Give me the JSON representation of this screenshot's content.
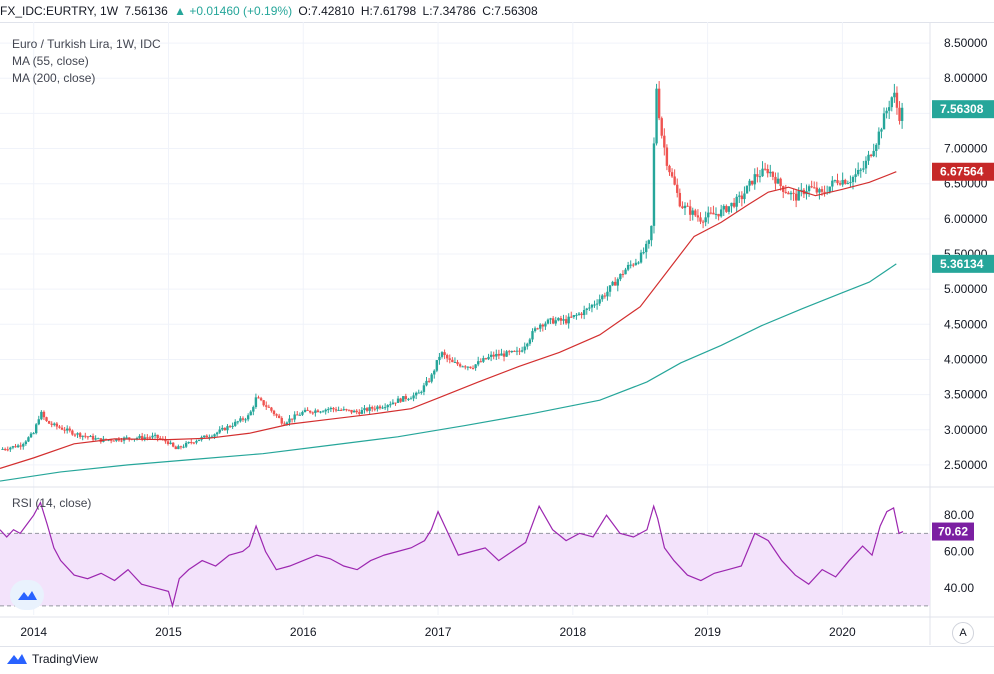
{
  "header": {
    "symbol": "FX_IDC:EURTRY, 1W",
    "last": "7.56136",
    "change": "▲ +0.01460 (+0.19%)",
    "open": "O:7.42810",
    "high": "H:7.61798",
    "low": "L:7.34786",
    "close": "C:7.56308"
  },
  "legend": {
    "title": "Euro / Turkish Lira, 1W, IDC",
    "ma55": "MA (55, close)",
    "ma200": "MA (200, close)",
    "rsi": "RSI (14, close)"
  },
  "footer": {
    "brand": "TradingView",
    "auto": "A"
  },
  "colors": {
    "up": "#26a69a",
    "down": "#ef5350",
    "ma55": "#d32f2f",
    "ma200": "#26a69a",
    "rsi": "#9c27b0",
    "rsi_band": "#f3e3fb",
    "price_badge": "#26a69a",
    "ma55_badge": "#c62828",
    "ma200_badge": "#26a69a",
    "rsi_badge": "#7b1fa2"
  },
  "chart_data": [
    {
      "type": "candlestick",
      "title": "Euro / Turkish Lira, 1W, IDC",
      "ylim": [
        2.2,
        8.8
      ],
      "y_ticks": [
        "8.50000",
        "8.00000",
        "7.50000",
        "7.00000",
        "6.50000",
        "6.00000",
        "5.50000",
        "5.00000",
        "4.50000",
        "4.00000",
        "3.50000",
        "3.00000",
        "2.50000"
      ],
      "y_tick_values": [
        8.5,
        8.0,
        7.5,
        7.0,
        6.5,
        6.0,
        5.5,
        5.0,
        4.5,
        4.0,
        3.5,
        3.0,
        2.5
      ],
      "x_ticks": [
        "2014",
        "2015",
        "2016",
        "2017",
        "2018",
        "2019",
        "2020"
      ],
      "x_tick_values": [
        2014.0,
        2015.0,
        2016.0,
        2017.0,
        2018.0,
        2019.0,
        2020.0
      ],
      "xlim": [
        2013.75,
        2020.65
      ],
      "close_path": [
        [
          2013.75,
          2.72
        ],
        [
          2013.9,
          2.78
        ],
        [
          2014.0,
          2.95
        ],
        [
          2014.05,
          3.25
        ],
        [
          2014.1,
          3.1
        ],
        [
          2014.3,
          2.95
        ],
        [
          2014.5,
          2.85
        ],
        [
          2014.7,
          2.88
        ],
        [
          2014.9,
          2.9
        ],
        [
          2015.0,
          2.82
        ],
        [
          2015.05,
          2.72
        ],
        [
          2015.2,
          2.85
        ],
        [
          2015.35,
          2.95
        ],
        [
          2015.5,
          3.1
        ],
        [
          2015.6,
          3.2
        ],
        [
          2015.65,
          3.45
        ],
        [
          2015.75,
          3.3
        ],
        [
          2015.85,
          3.1
        ],
        [
          2016.0,
          3.25
        ],
        [
          2016.2,
          3.3
        ],
        [
          2016.4,
          3.25
        ],
        [
          2016.6,
          3.35
        ],
        [
          2016.75,
          3.45
        ],
        [
          2016.85,
          3.5
        ],
        [
          2016.95,
          3.75
        ],
        [
          2017.02,
          4.1
        ],
        [
          2017.1,
          3.95
        ],
        [
          2017.25,
          3.9
        ],
        [
          2017.4,
          4.05
        ],
        [
          2017.6,
          4.1
        ],
        [
          2017.75,
          4.5
        ],
        [
          2017.85,
          4.55
        ],
        [
          2017.95,
          4.55
        ],
        [
          2018.1,
          4.7
        ],
        [
          2018.25,
          4.95
        ],
        [
          2018.4,
          5.3
        ],
        [
          2018.5,
          5.45
        ],
        [
          2018.58,
          5.7
        ],
        [
          2018.6,
          6.95
        ],
        [
          2018.62,
          7.9
        ],
        [
          2018.65,
          7.3
        ],
        [
          2018.7,
          6.8
        ],
        [
          2018.8,
          6.2
        ],
        [
          2018.95,
          6.0
        ],
        [
          2019.1,
          6.1
        ],
        [
          2019.25,
          6.3
        ],
        [
          2019.35,
          6.6
        ],
        [
          2019.45,
          6.7
        ],
        [
          2019.55,
          6.45
        ],
        [
          2019.65,
          6.3
        ],
        [
          2019.75,
          6.45
        ],
        [
          2019.85,
          6.35
        ],
        [
          2019.95,
          6.55
        ],
        [
          2020.05,
          6.55
        ],
        [
          2020.15,
          6.7
        ],
        [
          2020.25,
          7.1
        ],
        [
          2020.32,
          7.5
        ],
        [
          2020.38,
          7.8
        ],
        [
          2020.42,
          7.45
        ],
        [
          2020.45,
          7.56
        ]
      ],
      "ma55_path": [
        [
          2013.75,
          2.45
        ],
        [
          2014.0,
          2.6
        ],
        [
          2014.3,
          2.8
        ],
        [
          2014.6,
          2.87
        ],
        [
          2015.0,
          2.86
        ],
        [
          2015.3,
          2.88
        ],
        [
          2015.6,
          2.95
        ],
        [
          2015.9,
          3.08
        ],
        [
          2016.2,
          3.15
        ],
        [
          2016.5,
          3.22
        ],
        [
          2016.8,
          3.3
        ],
        [
          2017.0,
          3.45
        ],
        [
          2017.3,
          3.68
        ],
        [
          2017.6,
          3.9
        ],
        [
          2017.9,
          4.1
        ],
        [
          2018.2,
          4.35
        ],
        [
          2018.5,
          4.75
        ],
        [
          2018.7,
          5.25
        ],
        [
          2018.9,
          5.75
        ],
        [
          2019.1,
          5.95
        ],
        [
          2019.3,
          6.2
        ],
        [
          2019.45,
          6.38
        ],
        [
          2019.6,
          6.45
        ],
        [
          2019.8,
          6.33
        ],
        [
          2020.0,
          6.42
        ],
        [
          2020.2,
          6.52
        ],
        [
          2020.4,
          6.67
        ]
      ],
      "ma200_path": [
        [
          2013.75,
          2.27
        ],
        [
          2014.2,
          2.4
        ],
        [
          2014.7,
          2.5
        ],
        [
          2015.2,
          2.58
        ],
        [
          2015.7,
          2.66
        ],
        [
          2016.2,
          2.78
        ],
        [
          2016.7,
          2.9
        ],
        [
          2017.2,
          3.06
        ],
        [
          2017.7,
          3.23
        ],
        [
          2018.2,
          3.42
        ],
        [
          2018.55,
          3.68
        ],
        [
          2018.8,
          3.95
        ],
        [
          2019.1,
          4.2
        ],
        [
          2019.4,
          4.48
        ],
        [
          2019.7,
          4.72
        ],
        [
          2020.0,
          4.95
        ],
        [
          2020.2,
          5.1
        ],
        [
          2020.4,
          5.36
        ]
      ],
      "badges": [
        {
          "label": "7.56308",
          "value": 7.56,
          "color": "#26a69a"
        },
        {
          "label": "6.67564",
          "value": 6.67,
          "color": "#c62828"
        },
        {
          "label": "5.36134",
          "value": 5.36,
          "color": "#26a69a"
        }
      ],
      "ticker_overlay": "5.50000"
    },
    {
      "type": "line",
      "title": "RSI (14, close)",
      "ylim": [
        25,
        95
      ],
      "y_ticks": [
        "80.00",
        "60.00",
        "40.00"
      ],
      "y_tick_values": [
        80,
        60,
        40
      ],
      "band": [
        30,
        70
      ],
      "x": [
        2013.75,
        2013.8,
        2013.85,
        2013.9,
        2013.95,
        2014.0,
        2014.05,
        2014.1,
        2014.15,
        2014.2,
        2014.3,
        2014.4,
        2014.5,
        2014.6,
        2014.7,
        2014.8,
        2014.9,
        2015.0,
        2015.03,
        2015.08,
        2015.15,
        2015.25,
        2015.35,
        2015.45,
        2015.55,
        2015.6,
        2015.65,
        2015.72,
        2015.8,
        2015.9,
        2016.0,
        2016.1,
        2016.2,
        2016.3,
        2016.4,
        2016.5,
        2016.6,
        2016.7,
        2016.8,
        2016.9,
        2016.95,
        2017.0,
        2017.05,
        2017.15,
        2017.25,
        2017.35,
        2017.45,
        2017.55,
        2017.65,
        2017.75,
        2017.85,
        2017.95,
        2018.05,
        2018.15,
        2018.25,
        2018.35,
        2018.45,
        2018.55,
        2018.6,
        2018.63,
        2018.68,
        2018.75,
        2018.85,
        2018.95,
        2019.05,
        2019.15,
        2019.25,
        2019.35,
        2019.45,
        2019.55,
        2019.65,
        2019.75,
        2019.85,
        2019.95,
        2020.05,
        2020.15,
        2020.22,
        2020.28,
        2020.33,
        2020.38,
        2020.42,
        2020.45
      ],
      "values": [
        72,
        68,
        72,
        70,
        75,
        80,
        87,
        75,
        62,
        55,
        47,
        45,
        48,
        44,
        50,
        42,
        40,
        38,
        30,
        45,
        50,
        55,
        52,
        58,
        60,
        63,
        74,
        60,
        50,
        52,
        55,
        58,
        56,
        52,
        50,
        55,
        58,
        60,
        62,
        66,
        72,
        82,
        74,
        58,
        60,
        62,
        55,
        60,
        65,
        85,
        72,
        66,
        70,
        68,
        80,
        70,
        68,
        72,
        85,
        78,
        62,
        55,
        47,
        44,
        48,
        50,
        52,
        70,
        66,
        55,
        47,
        42,
        50,
        46,
        55,
        63,
        58,
        74,
        82,
        84,
        70,
        71
      ],
      "last_label": "70.62"
    }
  ]
}
